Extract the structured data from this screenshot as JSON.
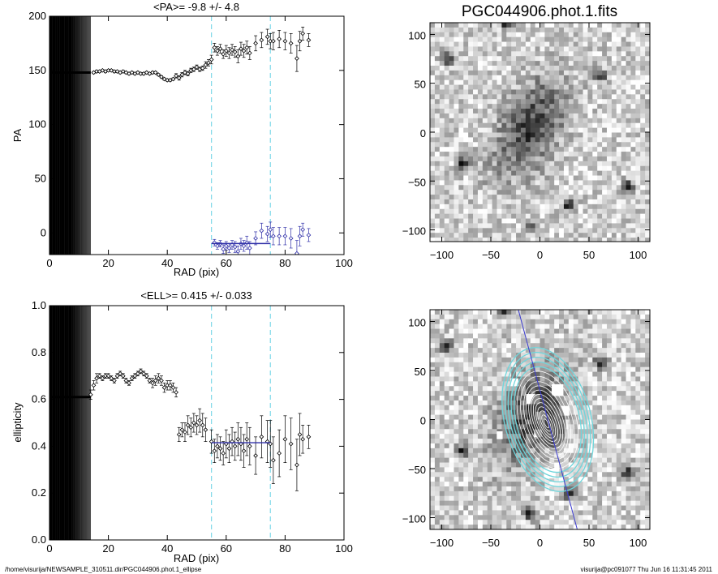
{
  "figure": {
    "footer_left": "/home/visurija/NEWSAMPLE_310511.dir/PGC044906.phot.1_ellipse",
    "footer_right": "visurija@pc091077  Thu Jun 16 11:31:45 2011"
  },
  "chart_data": [
    {
      "type": "scatter",
      "title": "<PA>=  -9.8 +/-   4.8",
      "xlabel": "RAD (pix)",
      "ylabel": "PA",
      "xlim": [
        0,
        100
      ],
      "ylim": [
        -20,
        200
      ],
      "xticks": [
        0,
        20,
        40,
        60,
        80,
        100
      ],
      "yticks": [
        0,
        50,
        100,
        150,
        200
      ],
      "fit_range": [
        55,
        75
      ],
      "mean_line": {
        "value": -9.8,
        "x_range": [
          55,
          75
        ],
        "color": "#2f2fa8"
      },
      "guide_color": "#7fd9e8",
      "series": [
        {
          "label": "PA",
          "x": [
            15,
            16,
            17,
            18,
            19,
            20,
            21,
            22,
            23,
            24,
            25,
            26,
            27,
            28,
            29,
            30,
            31,
            32,
            33,
            34,
            35,
            36,
            37,
            38,
            39,
            40,
            41,
            42,
            43,
            44,
            45,
            46,
            47,
            48,
            49,
            50,
            51,
            52,
            53,
            54,
            55,
            56,
            57,
            58,
            59,
            60,
            61,
            62,
            63,
            64,
            65,
            66,
            67,
            68,
            70,
            72,
            74,
            75,
            76,
            78,
            80,
            82,
            84,
            85,
            86,
            88
          ],
          "y": [
            148,
            149,
            149,
            150,
            149,
            150,
            150,
            149,
            149,
            148,
            149,
            148,
            147,
            148,
            147,
            148,
            147,
            147,
            148,
            147,
            148,
            148,
            146,
            144,
            142,
            141,
            141,
            142,
            145,
            143,
            146,
            148,
            147,
            150,
            151,
            153,
            151,
            152,
            155,
            157,
            160,
            171,
            168,
            170,
            165,
            168,
            166,
            169,
            167,
            163,
            170,
            168,
            171,
            166,
            175,
            178,
            181,
            177,
            177,
            179,
            177,
            175,
            161,
            177,
            184,
            178
          ],
          "err": [
            1,
            1,
            1,
            1,
            1,
            1,
            1,
            1,
            1,
            1,
            1,
            1,
            1,
            1,
            1,
            1,
            1,
            1,
            1,
            1,
            1,
            1,
            1,
            1,
            1,
            1,
            1,
            1,
            2,
            2,
            2,
            2,
            2,
            2,
            2,
            2,
            2,
            2,
            3,
            3,
            4,
            4,
            4,
            4,
            4,
            5,
            5,
            5,
            5,
            6,
            6,
            6,
            6,
            6,
            7,
            7,
            7,
            7,
            8,
            8,
            8,
            9,
            12,
            9,
            6,
            6
          ],
          "color": "#000000"
        },
        {
          "label": "PA (folded)",
          "x": [
            56,
            57,
            58,
            59,
            60,
            61,
            62,
            63,
            64,
            65,
            66,
            67,
            68,
            70,
            72,
            74,
            75,
            76,
            78,
            80,
            82,
            84,
            85,
            86,
            88
          ],
          "y": [
            -9,
            -12,
            -10,
            -15,
            -12,
            -14,
            -11,
            -13,
            -17,
            -10,
            -12,
            -9,
            -14,
            -5,
            2,
            -1,
            3,
            -3,
            -3,
            -3,
            -5,
            -19,
            -3,
            3,
            -2
          ],
          "err": [
            3,
            3,
            3,
            4,
            4,
            4,
            4,
            5,
            5,
            5,
            5,
            6,
            6,
            6,
            7,
            7,
            7,
            8,
            8,
            8,
            9,
            12,
            9,
            6,
            6
          ],
          "color": "#2f2fa8"
        }
      ]
    },
    {
      "type": "scatter",
      "title": "<ELL>= 0.415 +/-  0.033",
      "xlabel": "RAD (pix)",
      "ylabel": "ellipticity",
      "xlim": [
        0,
        100
      ],
      "ylim": [
        0.0,
        1.0
      ],
      "xticks": [
        0,
        20,
        40,
        60,
        80,
        100
      ],
      "yticks": [
        0.0,
        0.2,
        0.4,
        0.6,
        0.8,
        1.0
      ],
      "ytick_labels": [
        "0.0",
        "0.2",
        "0.4",
        "0.6",
        "0.8",
        "1.0"
      ],
      "fit_range": [
        55,
        75
      ],
      "mean_line": {
        "value": 0.415,
        "x_range": [
          55,
          75
        ],
        "color": "#2f2fa8"
      },
      "guide_color": "#7fd9e8",
      "series": [
        {
          "label": "ellipticity",
          "x": [
            14,
            15,
            16,
            17,
            18,
            19,
            20,
            21,
            22,
            23,
            24,
            25,
            26,
            27,
            28,
            29,
            30,
            31,
            32,
            33,
            34,
            35,
            36,
            37,
            38,
            39,
            40,
            41,
            42,
            43,
            44,
            45,
            46,
            47,
            48,
            49,
            50,
            51,
            52,
            53,
            55,
            56,
            57,
            58,
            59,
            60,
            61,
            62,
            63,
            64,
            65,
            66,
            67,
            68,
            70,
            72,
            74,
            75,
            76,
            78,
            80,
            82,
            84,
            85,
            86,
            88
          ],
          "y": [
            0.62,
            0.66,
            0.69,
            0.7,
            0.69,
            0.7,
            0.7,
            0.69,
            0.68,
            0.7,
            0.71,
            0.7,
            0.68,
            0.67,
            0.69,
            0.7,
            0.71,
            0.72,
            0.71,
            0.7,
            0.68,
            0.67,
            0.68,
            0.69,
            0.68,
            0.65,
            0.66,
            0.66,
            0.65,
            0.63,
            0.45,
            0.47,
            0.46,
            0.49,
            0.48,
            0.5,
            0.49,
            0.51,
            0.49,
            0.47,
            0.42,
            0.38,
            0.4,
            0.39,
            0.37,
            0.41,
            0.39,
            0.42,
            0.4,
            0.43,
            0.41,
            0.38,
            0.43,
            0.4,
            0.36,
            0.44,
            0.42,
            0.41,
            0.34,
            0.37,
            0.43,
            0.41,
            0.32,
            0.45,
            0.43,
            0.44
          ],
          "err": [
            0.02,
            0.02,
            0.02,
            0.01,
            0.01,
            0.01,
            0.01,
            0.01,
            0.01,
            0.01,
            0.01,
            0.01,
            0.01,
            0.01,
            0.01,
            0.01,
            0.01,
            0.01,
            0.01,
            0.01,
            0.01,
            0.02,
            0.02,
            0.02,
            0.02,
            0.02,
            0.02,
            0.02,
            0.02,
            0.02,
            0.03,
            0.03,
            0.04,
            0.04,
            0.04,
            0.04,
            0.04,
            0.05,
            0.05,
            0.05,
            0.05,
            0.05,
            0.05,
            0.05,
            0.05,
            0.06,
            0.06,
            0.06,
            0.06,
            0.07,
            0.07,
            0.07,
            0.07,
            0.08,
            0.08,
            0.09,
            0.09,
            0.1,
            0.1,
            0.1,
            0.1,
            0.11,
            0.11,
            0.09,
            0.06,
            0.05
          ],
          "color": "#000000"
        }
      ]
    },
    {
      "type": "heatmap",
      "title": "PGC044906.phot.1.fits",
      "xlim": [
        -112,
        112
      ],
      "ylim": [
        -112,
        112
      ],
      "xticks": [
        -100,
        -50,
        0,
        50,
        100
      ],
      "yticks": [
        -100,
        -50,
        0,
        50,
        100
      ],
      "xtick_labels": [
        "−100",
        "−50",
        "0",
        "50",
        "100"
      ],
      "ytick_labels": [
        "−100",
        "−50",
        "0",
        "50",
        "100"
      ],
      "colormap": "grayscale-inverted",
      "source": {
        "center": [
          -10,
          5
        ],
        "sigma_major": 38,
        "sigma_minor": 20,
        "pa_deg": 62
      },
      "stars": [
        [
          -95,
          75
        ],
        [
          62,
          58
        ],
        [
          -78,
          -32
        ],
        [
          -10,
          -96
        ],
        [
          90,
          -55
        ],
        [
          -35,
          112
        ],
        [
          30,
          -75
        ]
      ]
    },
    {
      "type": "heatmap",
      "title": "",
      "xlim": [
        -112,
        112
      ],
      "ylim": [
        -112,
        112
      ],
      "xticks": [
        -100,
        -50,
        0,
        50,
        100
      ],
      "yticks": [
        -100,
        -50,
        0,
        50,
        100
      ],
      "xtick_labels": [
        "−100",
        "−50",
        "0",
        "50",
        "100"
      ],
      "ytick_labels": [
        "−100",
        "−50",
        "0",
        "50",
        "100"
      ],
      "colormap": "grayscale-inverted",
      "contour_color": "#ffffff",
      "fit_ellipse_color": "#6fd6dc",
      "axis_line_color": "#3b3bd0",
      "ellipse_center": [
        8,
        0
      ],
      "ellipse_pa_deg": -15,
      "ellipse_ell": 0.415,
      "fit_semi_majors": [
        55,
        60,
        65,
        70,
        75
      ],
      "contour_semi_majors": [
        5,
        9,
        13,
        17,
        21,
        25,
        29,
        33,
        37,
        41,
        46,
        51
      ],
      "mask_boxes": [
        [
          -14,
          26,
          14,
          10
        ],
        [
          12,
          36,
          12,
          12
        ],
        [
          -4,
          8,
          10,
          8
        ],
        [
          20,
          14,
          10,
          10
        ],
        [
          -6,
          -10,
          8,
          8
        ],
        [
          4,
          -50,
          12,
          10
        ],
        [
          -44,
          -12,
          6,
          8
        ],
        [
          -30,
          42,
          8,
          8
        ]
      ]
    }
  ]
}
